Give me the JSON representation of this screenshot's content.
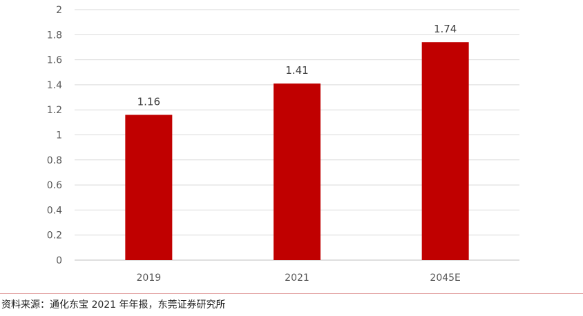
{
  "chart_data": {
    "type": "bar",
    "categories": [
      "2019",
      "2021",
      "2045E"
    ],
    "values": [
      1.16,
      1.41,
      1.74
    ],
    "data_labels": [
      "1.16",
      "1.41",
      "1.74"
    ],
    "y_ticks": [
      "0",
      "0.2",
      "0.4",
      "0.6",
      "0.8",
      "1",
      "1.2",
      "1.4",
      "1.6",
      "1.8",
      "2"
    ],
    "ylim": [
      0,
      2
    ],
    "grid": true,
    "title": "",
    "xlabel": "",
    "ylabel": "",
    "bar_color": "#c00000",
    "grid_color": "#d9d9d9",
    "label_color": "#595959"
  },
  "footer": {
    "source": "资料来源：通化东宝 2021 年年报，东莞证券研究所"
  }
}
